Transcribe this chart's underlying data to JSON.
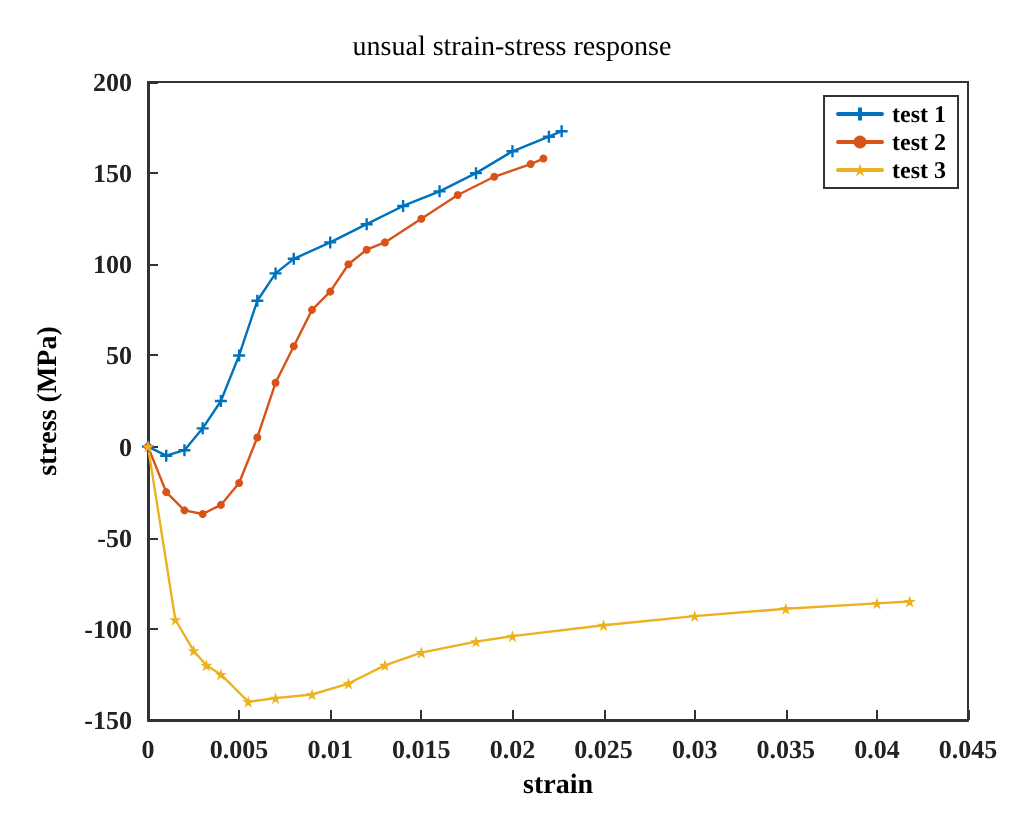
{
  "chart_data": {
    "type": "line",
    "title": "unsual strain-stress response",
    "xlabel": "strain",
    "ylabel": "stress (MPa)",
    "xlim": [
      0,
      0.045
    ],
    "xticks": [
      0,
      0.005,
      0.01,
      0.015,
      0.02,
      0.025,
      0.03,
      0.035,
      0.04,
      0.045
    ],
    "ylim": [
      -150,
      200
    ],
    "yticks": [
      -150,
      -100,
      -50,
      0,
      50,
      100,
      150,
      200
    ],
    "grid": false,
    "legend": "top right",
    "line_style": "solid",
    "series": [
      {
        "name": "test 1",
        "color": "#0072bd",
        "marker": "cross",
        "x": [
          0,
          0.001,
          0.002,
          0.003,
          0.004,
          0.005,
          0.006,
          0.007,
          0.008,
          0.01,
          0.012,
          0.014,
          0.016,
          0.018,
          0.02,
          0.022,
          0.0227
        ],
        "values": [
          0,
          -5,
          -2,
          10,
          25,
          50,
          80,
          95,
          103,
          112,
          122,
          132,
          140,
          150,
          162,
          170,
          173
        ]
      },
      {
        "name": "test 2",
        "color": "#d95319",
        "marker": "circle",
        "x": [
          0,
          0.001,
          0.002,
          0.003,
          0.004,
          0.005,
          0.006,
          0.007,
          0.008,
          0.009,
          0.01,
          0.011,
          0.012,
          0.013,
          0.015,
          0.017,
          0.019,
          0.021,
          0.0217
        ],
        "values": [
          0,
          -25,
          -35,
          -37,
          -32,
          -20,
          5,
          35,
          55,
          75,
          85,
          100,
          108,
          112,
          125,
          138,
          148,
          155,
          158
        ]
      },
      {
        "name": "test 3",
        "color": "#edb120",
        "marker": "star",
        "x": [
          0,
          0.0015,
          0.0025,
          0.0032,
          0.004,
          0.0055,
          0.007,
          0.009,
          0.011,
          0.013,
          0.015,
          0.018,
          0.02,
          0.025,
          0.03,
          0.035,
          0.04,
          0.0418
        ],
        "values": [
          0,
          -95,
          -112,
          -120,
          -125,
          -140,
          -138,
          -136,
          -130,
          -120,
          -113,
          -107,
          -104,
          -98,
          -93,
          -89,
          -86,
          -85
        ]
      }
    ]
  }
}
